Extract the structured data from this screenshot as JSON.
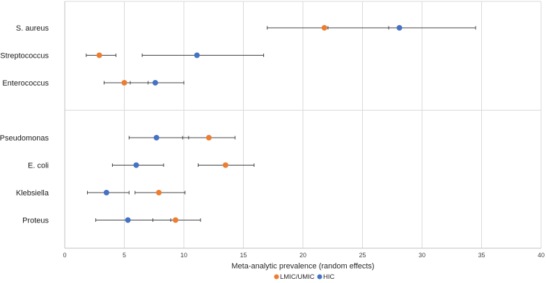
{
  "chart_data": {
    "type": "scatter",
    "title": "",
    "xlabel": "Meta-analytic prevalence (random effects)",
    "ylabel": "",
    "xlim": [
      0,
      40
    ],
    "xticks": [
      0,
      5,
      10,
      15,
      20,
      25,
      30,
      35,
      40
    ],
    "grid": true,
    "legend_position": "bottom-center",
    "categories": [
      "S. aureus",
      "Streptococcus",
      "Enterococcus",
      "",
      "Pseudomonas",
      "E. coli",
      "Klebsiella",
      "Proteus"
    ],
    "series": [
      {
        "name": "LMIC/UMIC",
        "color": "#ED7D31",
        "points": [
          {
            "category": "S. aureus",
            "value": 21.8,
            "lower": 17.0,
            "upper": 27.2
          },
          {
            "category": "Streptococcus",
            "value": 2.9,
            "lower": 1.8,
            "upper": 4.3
          },
          {
            "category": "Enterococcus",
            "value": 5.0,
            "lower": 3.3,
            "upper": 7.0
          },
          {
            "category": "Pseudomonas",
            "value": 12.1,
            "lower": 9.9,
            "upper": 14.3
          },
          {
            "category": "E. coli",
            "value": 13.5,
            "lower": 11.2,
            "upper": 15.9
          },
          {
            "category": "Klebsiella",
            "value": 7.9,
            "lower": 5.9,
            "upper": 10.1
          },
          {
            "category": "Proteus",
            "value": 9.3,
            "lower": 7.4,
            "upper": 11.4
          }
        ]
      },
      {
        "name": "HIC",
        "color": "#4472C4",
        "points": [
          {
            "category": "S. aureus",
            "value": 28.1,
            "lower": 22.1,
            "upper": 34.5
          },
          {
            "category": "Streptococcus",
            "value": 11.1,
            "lower": 6.5,
            "upper": 16.7
          },
          {
            "category": "Enterococcus",
            "value": 7.6,
            "lower": 5.5,
            "upper": 10.0
          },
          {
            "category": "Pseudomonas",
            "value": 7.7,
            "lower": 5.4,
            "upper": 10.4
          },
          {
            "category": "E. coli",
            "value": 6.0,
            "lower": 4.0,
            "upper": 8.3
          },
          {
            "category": "Klebsiella",
            "value": 3.5,
            "lower": 1.9,
            "upper": 5.4
          },
          {
            "category": "Proteus",
            "value": 5.3,
            "lower": 2.6,
            "upper": 8.9
          }
        ]
      }
    ]
  }
}
